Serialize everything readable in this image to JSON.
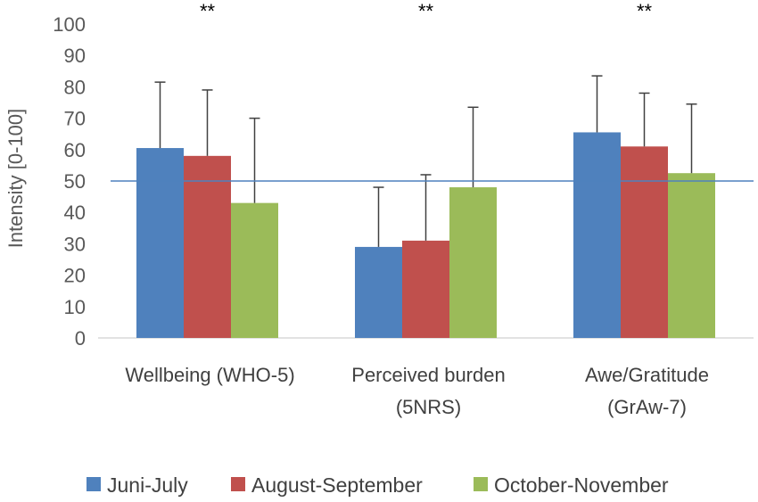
{
  "chart_data": {
    "type": "bar",
    "ylabel": "Intensity [0-100]",
    "ylim": [
      0,
      100
    ],
    "yticks": [
      0,
      10,
      20,
      30,
      40,
      50,
      60,
      70,
      80,
      90,
      100
    ],
    "categories": [
      [
        "Wellbeing (WHO-5)"
      ],
      [
        "Perceived burden",
        "(5NRS)"
      ],
      [
        "Awe/Gratitude",
        "(GrAw-7)"
      ]
    ],
    "significance": [
      "**",
      "**",
      "**"
    ],
    "series": [
      {
        "name": "Juni-July",
        "color": "#4f81bd",
        "values": [
          60.5,
          29,
          65.5
        ],
        "error_upper": [
          81.5,
          48,
          83.5
        ]
      },
      {
        "name": "August-September",
        "color": "#c0504d",
        "values": [
          58,
          31,
          61
        ],
        "error_upper": [
          79,
          52,
          78
        ]
      },
      {
        "name": "October-November",
        "color": "#9bbb59",
        "values": [
          43,
          48,
          52.5
        ],
        "error_upper": [
          70,
          73.5,
          74.5
        ]
      }
    ],
    "reference_line": {
      "value": 50,
      "color": "#4f81bd"
    },
    "grid": false,
    "legend_position": "bottom"
  }
}
